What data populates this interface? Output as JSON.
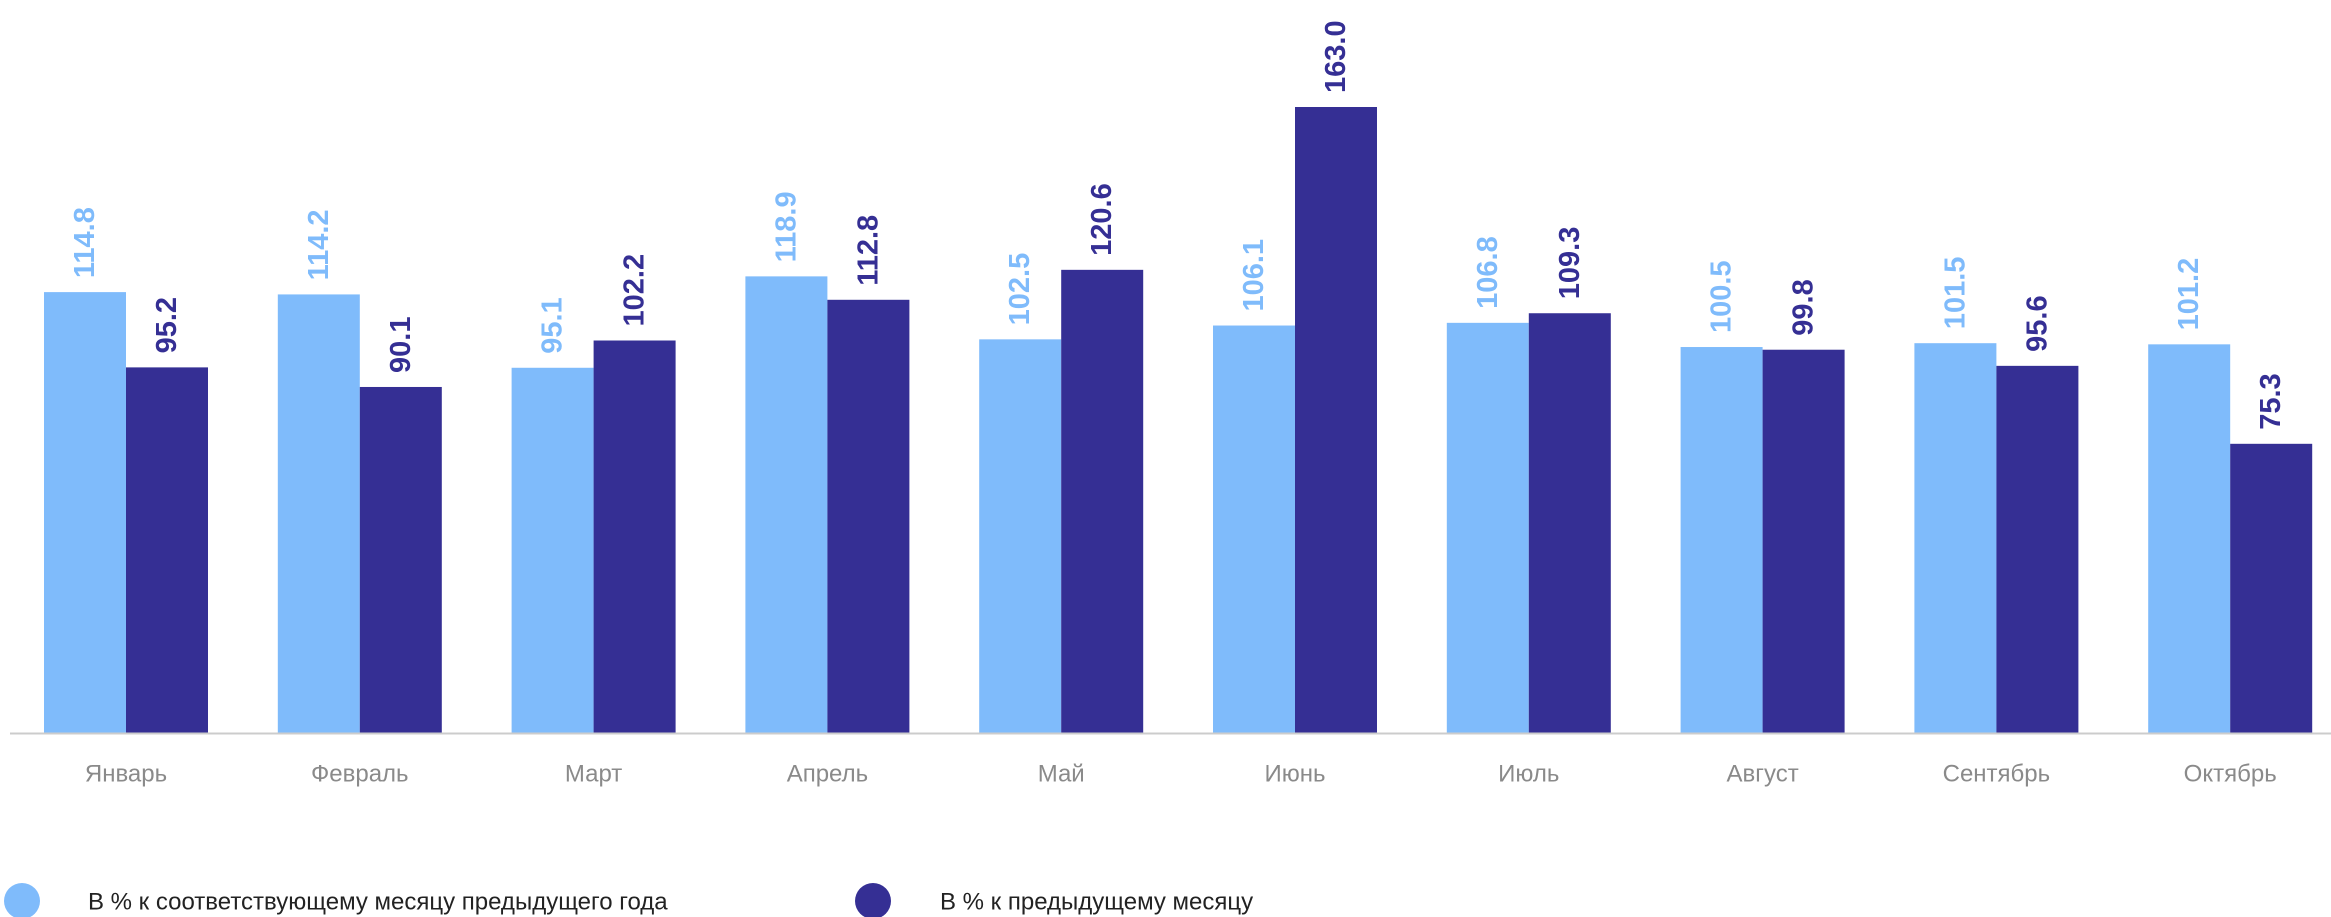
{
  "chart_data": {
    "type": "bar",
    "categories": [
      "Январь",
      "Февраль",
      "Март",
      "Апрель",
      "Май",
      "Июнь",
      "Июль",
      "Август",
      "Сентябрь",
      "Октябрь"
    ],
    "series": [
      {
        "name": "В % к соответствующему месяцу предыдущего года",
        "color": "#7fbbfb",
        "values": [
          114.8,
          114.2,
          95.1,
          118.9,
          102.5,
          106.1,
          106.8,
          100.5,
          101.5,
          101.2
        ],
        "labels": [
          "114.8",
          "114.2",
          "95.1",
          "118.9",
          "102.5",
          "106.1",
          "106.8",
          "100.5",
          "101.5",
          "101.2"
        ]
      },
      {
        "name": "В % к предыдущему месяцу",
        "color": "#352f94",
        "values": [
          95.2,
          90.1,
          102.2,
          112.8,
          120.6,
          163.0,
          109.3,
          99.8,
          95.6,
          75.3
        ],
        "labels": [
          "95.2",
          "90.1",
          "102.2",
          "112.8",
          "120.6",
          "163.0",
          "109.3",
          "99.8",
          "95.6",
          "75.3"
        ]
      }
    ],
    "ylim": [
      0,
      163
    ],
    "grid": false,
    "legend_position": "bottom-left",
    "axis_color": "#cccccc"
  }
}
